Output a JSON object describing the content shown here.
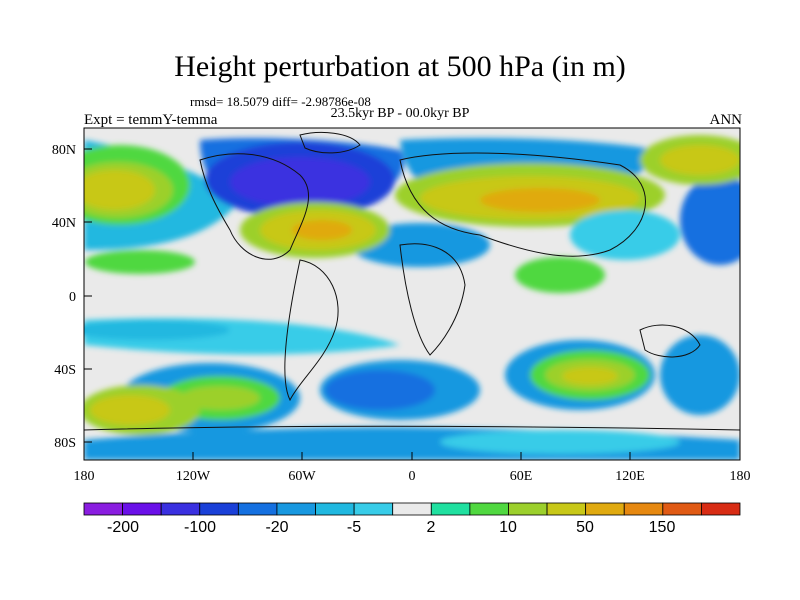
{
  "title": "Height perturbation at 500 hPa (in m)",
  "stats": "rmsd= 18.5079 diff= -2.98786e-08",
  "period": "23.5kyr BP - 00.0kyr BP",
  "experiment": "Expt = temmY-temma",
  "season": "ANN",
  "lat_ticks": [
    "80N",
    "40N",
    "0",
    "40S",
    "80S"
  ],
  "lon_ticks": [
    "180",
    "120W",
    "60W",
    "0",
    "60E",
    "120E",
    "180"
  ],
  "colorbar": {
    "colors": [
      "#8a1de0",
      "#6a10e8",
      "#3a30e0",
      "#1a40d8",
      "#1570e0",
      "#1898e0",
      "#20b8e0",
      "#38cce8",
      "#eaeaea",
      "#20e0a0",
      "#50d840",
      "#9cd02c",
      "#c8c818",
      "#e0aa10",
      "#e68810",
      "#e05a14",
      "#d82c14"
    ],
    "labels": [
      "-200",
      "-100",
      "-20",
      "-5",
      "2",
      "10",
      "50",
      "150"
    ]
  }
}
